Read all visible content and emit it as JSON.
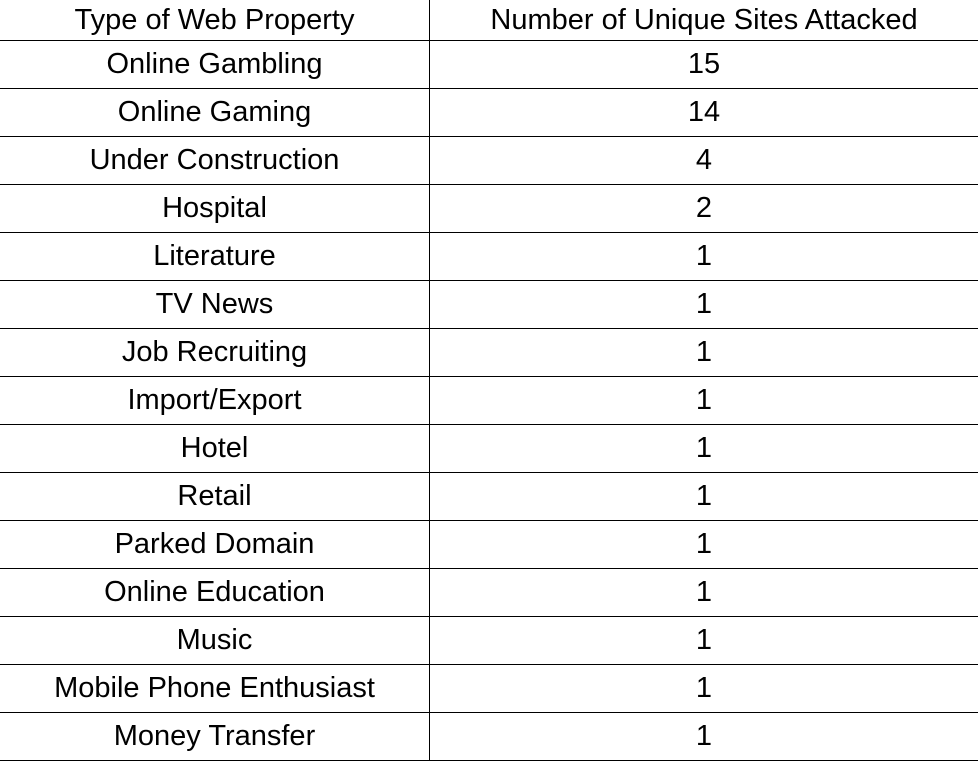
{
  "table": {
    "header": [
      "Type of Web Property",
      "Number of Unique Sites Attacked"
    ],
    "rows": [
      [
        "Online Gambling",
        15
      ],
      [
        "Online Gaming",
        14
      ],
      [
        "Under Construction",
        4
      ],
      [
        "Hospital",
        2
      ],
      [
        "Literature",
        1
      ],
      [
        "TV News",
        1
      ],
      [
        "Job Recruiting",
        1
      ],
      [
        "Import/Export",
        1
      ],
      [
        "Hotel",
        1
      ],
      [
        "Retail",
        1
      ],
      [
        "Parked Domain",
        1
      ],
      [
        "Online Education",
        1
      ],
      [
        "Music",
        1
      ],
      [
        "Mobile Phone Enthusiast",
        1
      ],
      [
        "Money Transfer",
        1
      ]
    ]
  }
}
